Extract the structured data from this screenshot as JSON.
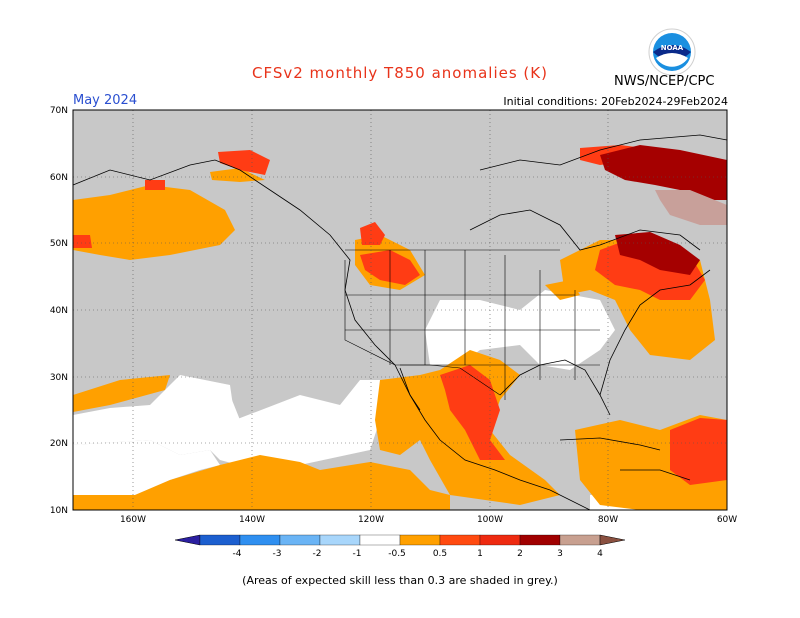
{
  "title": "CFSv2 monthly T850 anomalies (K)",
  "month": "May 2024",
  "initial_conditions": "Initial conditions: 20Feb2024-29Feb2024",
  "org": "NWS/NCEP/CPC",
  "logo_text": "NOAA",
  "note": "(Areas of expected skill less than 0.3 are shaded in grey.)",
  "lat_labels": [
    "70N",
    "60N",
    "50N",
    "40N",
    "30N",
    "20N",
    "10N"
  ],
  "lon_labels": [
    "160W",
    "140W",
    "120W",
    "100W",
    "80W",
    "60W"
  ],
  "colorbar": {
    "labels": [
      "-4",
      "-3",
      "-2",
      "-1",
      "-0.5",
      "0.5",
      "1",
      "2",
      "3",
      "4"
    ],
    "colors": [
      "#2b1fa0",
      "#1c5fcf",
      "#2f8ff0",
      "#6ab4f5",
      "#a8d6fb",
      "#ffffff",
      "#ffa000",
      "#ff4a10",
      "#ee2a10",
      "#a00000",
      "#c8a090",
      "#8a5040"
    ]
  },
  "colors": {
    "grey_low_skill": "#c8c8c8",
    "orange_0_5_1": "#ffa000",
    "red_1_2": "#ff3c14",
    "darkred_2_3": "#a50000",
    "tan_3_4": "#c8a09a"
  }
}
